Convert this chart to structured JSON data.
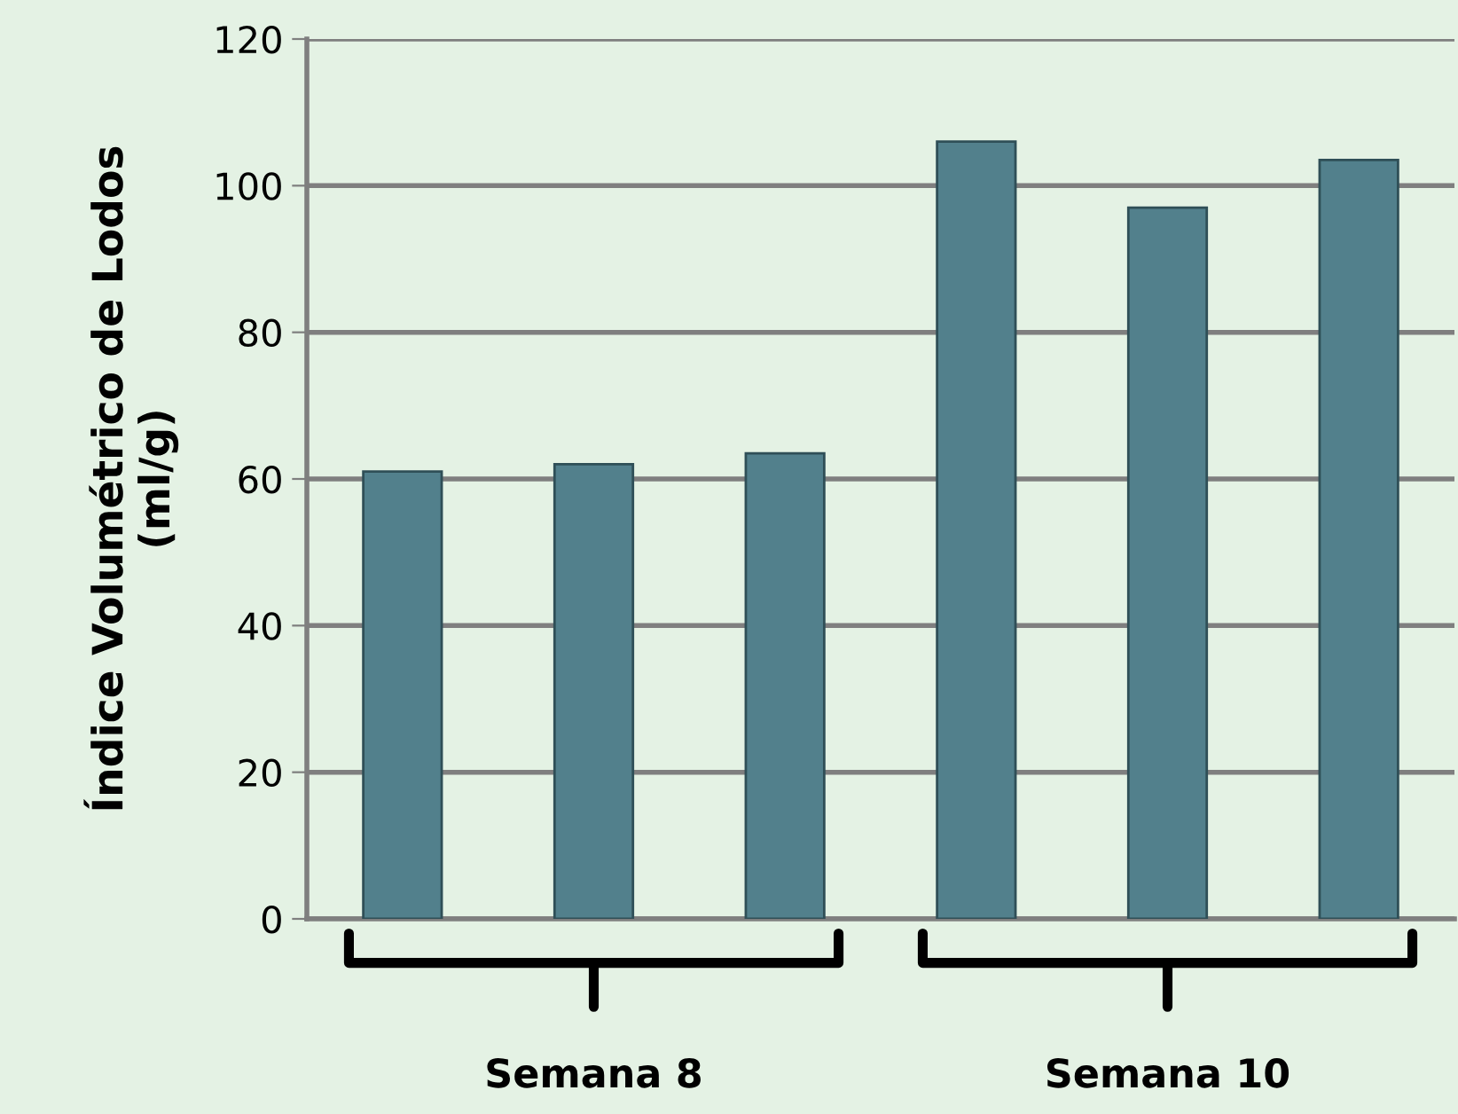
{
  "chart_data": {
    "type": "bar",
    "ylabel": "Índice Volumétrico de Lodos\n(ml/g)",
    "categories": [
      null,
      null,
      null,
      null,
      null,
      null
    ],
    "values": [
      61,
      62,
      63.5,
      106,
      97,
      103.5
    ],
    "color": "#52808c",
    "ylim": [
      0,
      120
    ],
    "yticks": [
      0,
      20,
      40,
      60,
      80,
      100,
      120
    ],
    "grid": "y",
    "annotations": [
      "Semana 8",
      "Semana 10"
    ]
  }
}
